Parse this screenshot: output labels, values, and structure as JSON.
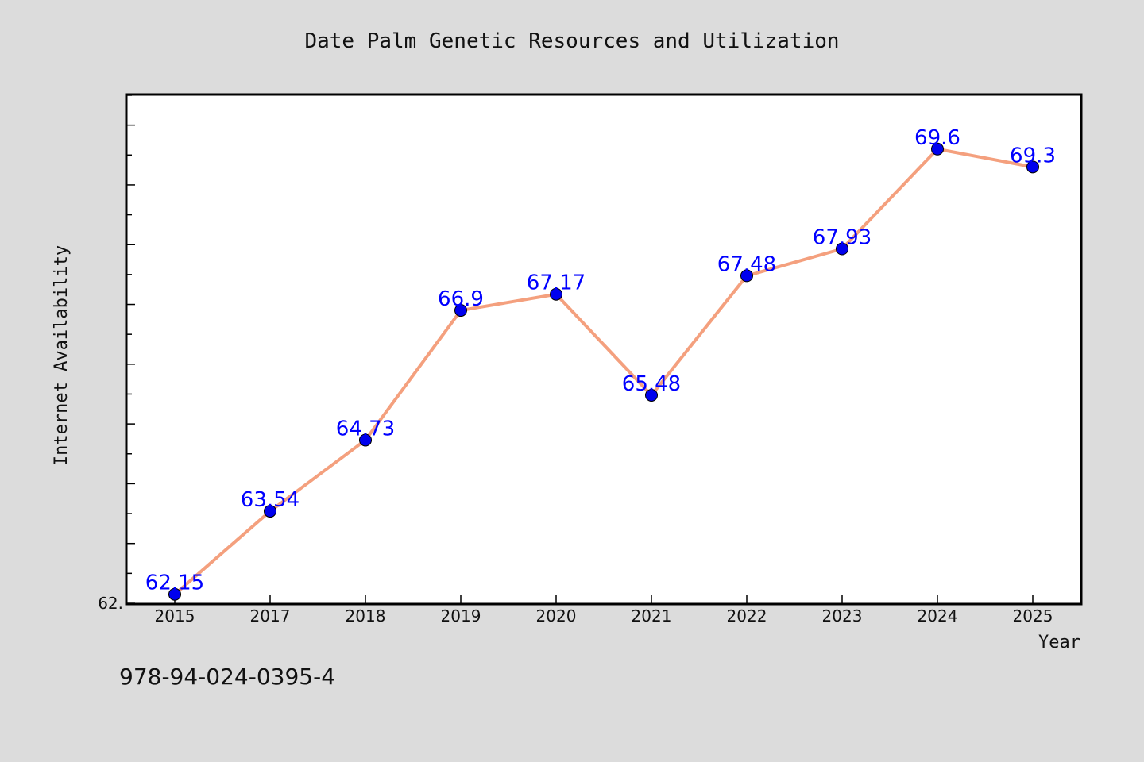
{
  "chart_data": {
    "type": "line",
    "title": "Date Palm Genetic Resources and Utilization",
    "xlabel": "Year",
    "ylabel": "Internet Availability",
    "categories": [
      "2015",
      "2017",
      "2018",
      "2019",
      "2020",
      "2021",
      "2022",
      "2023",
      "2024",
      "2025"
    ],
    "series": [
      {
        "values": [
          62.15,
          63.54,
          64.73,
          66.9,
          67.17,
          65.48,
          67.48,
          67.93,
          69.6,
          69.3
        ],
        "data_labels": [
          "62.15",
          "63.54",
          "64.73",
          "66.9",
          "67.17",
          "65.48",
          "67.48",
          "67.93",
          "69.6",
          "69.3"
        ],
        "line_color": "#f4a07e",
        "marker_color": "#0000ee",
        "label_color": "#0000ff"
      }
    ],
    "ylim": [
      62.0,
      70.5
    ],
    "y_tick_label": "62.",
    "grid": false,
    "legend": "none"
  },
  "footer": {
    "isbn": "978-94-024-0395-4"
  },
  "colors": {
    "background": "#dcdcdc",
    "plot_background": "#ffffff",
    "axis": "#000000"
  }
}
